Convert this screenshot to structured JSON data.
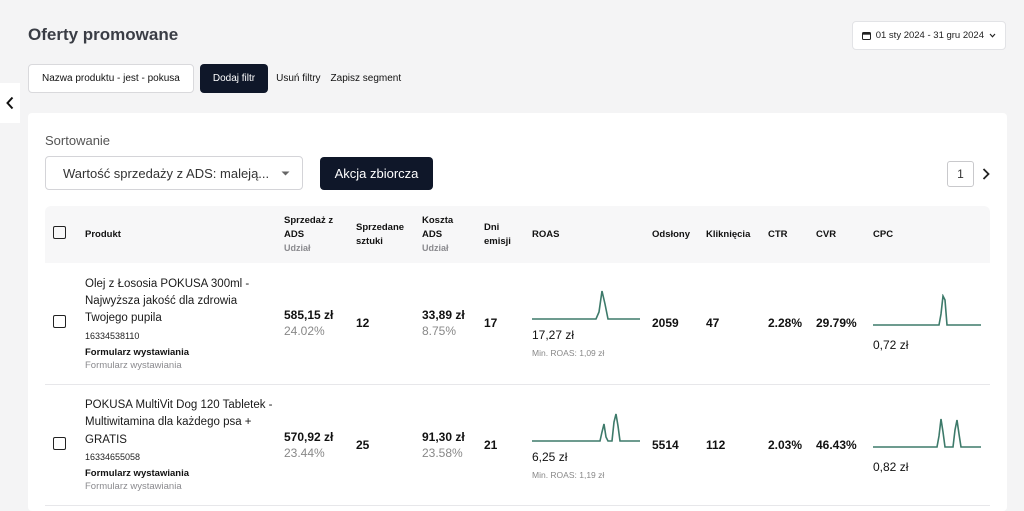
{
  "header": {
    "title": "Oferty promowane",
    "date_range": "01 sty 2024 - 31 gru 2024"
  },
  "filters": {
    "active_filter": "Nazwa produktu - jest - pokusa",
    "add_filter": "Dodaj filtr",
    "remove_filters": "Usuń filtry",
    "save_segment": "Zapisz segment"
  },
  "toolbar": {
    "sort_label": "Sortowanie",
    "sort_value": "Wartość sprzedaży z ADS: maleją...",
    "bulk_action": "Akcja zbiorcza",
    "current_page": "1"
  },
  "columns": {
    "product": "Produkt",
    "sales_line1": "Sprzedaż z",
    "sales_line2": "ADS",
    "sales_sub": "Udział",
    "units_line1": "Sprzedane",
    "units_line2": "sztuki",
    "cost_line1": "Koszta",
    "cost_line2": "ADS",
    "cost_sub": "Udział",
    "days_line1": "Dni",
    "days_line2": "emisji",
    "roas": "ROAS",
    "views": "Odsłony",
    "clicks": "Kliknięcia",
    "ctr": "CTR",
    "cvr": "CVR",
    "cpc": "CPC"
  },
  "rows": [
    {
      "name": "Olej z Łososia POKUSA 300ml - Najwyższa jakość dla zdrowia Twojego pupila",
      "id": "16334538110",
      "form": "Formularz wystawiania",
      "form_sub": "Formularz wystawiania",
      "sales": "585,15 zł",
      "sales_share": "24.02%",
      "units": "12",
      "cost": "33,89 zł",
      "cost_share": "8.75%",
      "days": "17",
      "roas": "17,27 zł",
      "roas_min": "Min. ROAS: 1,09 zł",
      "views": "2059",
      "clicks": "47",
      "ctr": "2.28%",
      "cvr": "29.79%",
      "cpc": "0,72 zł"
    },
    {
      "name": "POKUSA MultiVit Dog 120 Tabletek - Multiwitamina dla każdego psa + GRATIS",
      "id": "16334655058",
      "form": "Formularz wystawiania",
      "form_sub": "Formularz wystawiania",
      "sales": "570,92 zł",
      "sales_share": "23.44%",
      "units": "25",
      "cost": "91,30 zł",
      "cost_share": "23.58%",
      "days": "21",
      "roas": "6,25 zł",
      "roas_min": "Min. ROAS: 1,19 zł",
      "views": "5514",
      "clicks": "112",
      "ctr": "2.03%",
      "cvr": "46.43%",
      "cpc": "0,82 zł"
    }
  ],
  "icons": {
    "calendar": "calendar-icon",
    "chevron_down": "chevron-down-icon",
    "chevron_left": "chevron-left-icon",
    "chevron_right": "chevron-right-icon"
  },
  "colors": {
    "accent_dark": "#0f1729",
    "sparkline": "#3d7a6a"
  }
}
